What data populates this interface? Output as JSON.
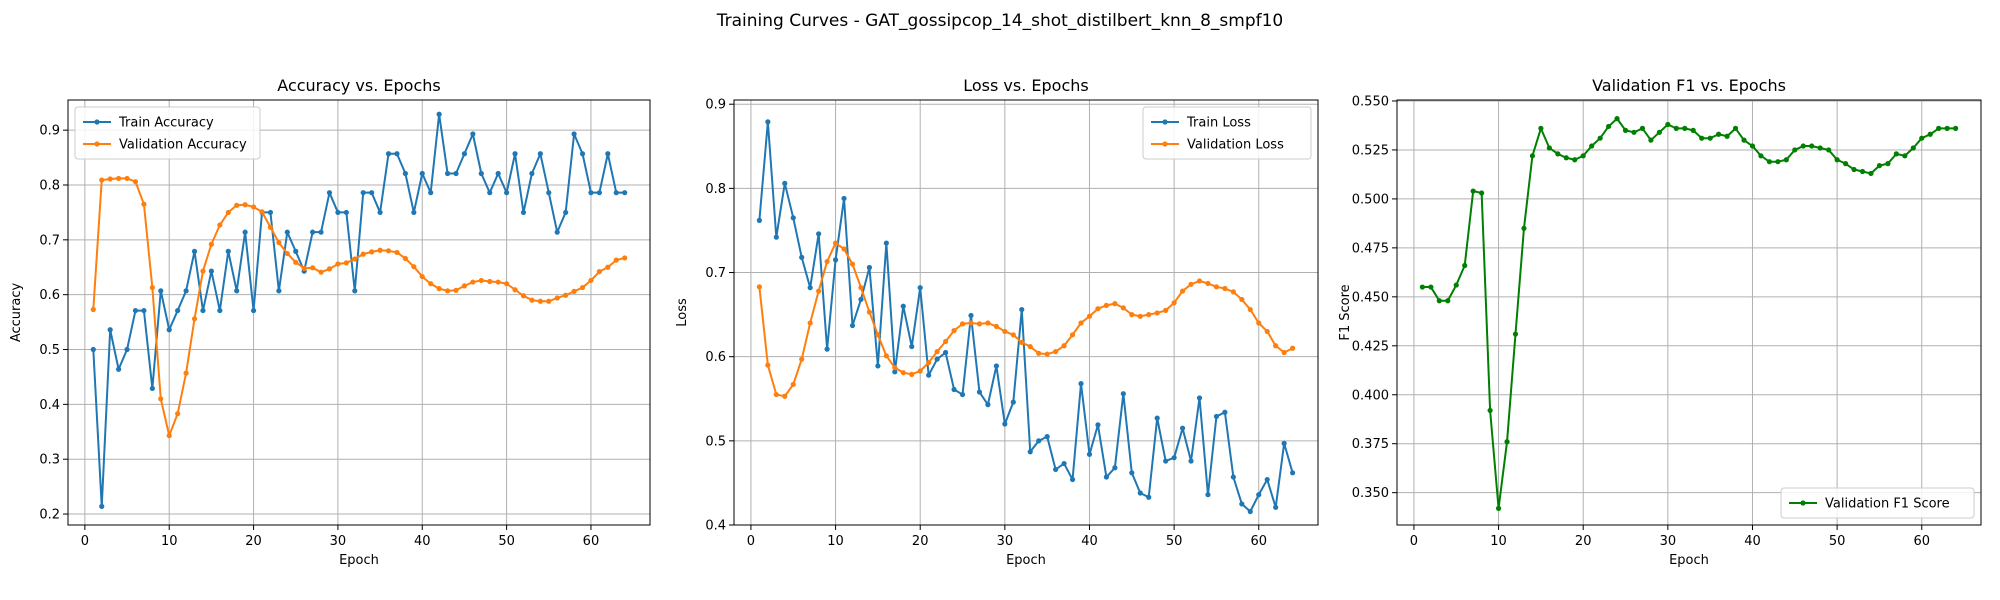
{
  "suptitle": "Training Curves - GAT_gossipcop_14_shot_distilbert_knn_8_smpf10",
  "chart_data": [
    {
      "type": "line",
      "title": "Accuracy vs. Epochs",
      "xlabel": "Epoch",
      "ylabel": "Accuracy",
      "xlim": [
        -2,
        67
      ],
      "ylim": [
        0.18,
        0.955
      ],
      "xticks": [
        0,
        10,
        20,
        30,
        40,
        50,
        60
      ],
      "yticks": [
        0.2,
        0.3,
        0.4,
        0.5,
        0.6,
        0.7,
        0.8,
        0.9
      ],
      "ytick_decimals": 1,
      "grid": true,
      "legend": "upper left",
      "x": [
        1,
        2,
        3,
        4,
        5,
        6,
        7,
        8,
        9,
        10,
        11,
        12,
        13,
        14,
        15,
        16,
        17,
        18,
        19,
        20,
        21,
        22,
        23,
        24,
        25,
        26,
        27,
        28,
        29,
        30,
        31,
        32,
        33,
        34,
        35,
        36,
        37,
        38,
        39,
        40,
        41,
        42,
        43,
        44,
        45,
        46,
        47,
        48,
        49,
        50,
        51,
        52,
        53,
        54,
        55,
        56,
        57,
        58,
        59,
        60,
        61,
        62,
        63,
        64
      ],
      "series": [
        {
          "name": "Train Accuracy",
          "color": "#1f77b4",
          "values": [
            0.5,
            0.214,
            0.536,
            0.464,
            0.5,
            0.571,
            0.571,
            0.429,
            0.607,
            0.536,
            0.571,
            0.607,
            0.679,
            0.571,
            0.643,
            0.571,
            0.679,
            0.607,
            0.714,
            0.571,
            0.75,
            0.75,
            0.607,
            0.714,
            0.679,
            0.643,
            0.714,
            0.714,
            0.786,
            0.75,
            0.75,
            0.607,
            0.786,
            0.786,
            0.75,
            0.857,
            0.857,
            0.821,
            0.75,
            0.821,
            0.786,
            0.929,
            0.821,
            0.821,
            0.857,
            0.893,
            0.821,
            0.786,
            0.821,
            0.786,
            0.857,
            0.75,
            0.821,
            0.857,
            0.786,
            0.714,
            0.75,
            0.893,
            0.857,
            0.786,
            0.786,
            0.857,
            0.786,
            0.786
          ]
        },
        {
          "name": "Validation Accuracy",
          "color": "#ff7f0e",
          "values": [
            0.573,
            0.809,
            0.811,
            0.812,
            0.812,
            0.806,
            0.765,
            0.613,
            0.41,
            0.343,
            0.383,
            0.457,
            0.556,
            0.643,
            0.692,
            0.727,
            0.75,
            0.763,
            0.764,
            0.76,
            0.751,
            0.723,
            0.695,
            0.675,
            0.659,
            0.648,
            0.649,
            0.641,
            0.647,
            0.656,
            0.658,
            0.665,
            0.674,
            0.678,
            0.681,
            0.68,
            0.677,
            0.666,
            0.651,
            0.633,
            0.62,
            0.611,
            0.607,
            0.608,
            0.616,
            0.623,
            0.626,
            0.624,
            0.623,
            0.62,
            0.609,
            0.598,
            0.59,
            0.588,
            0.588,
            0.594,
            0.599,
            0.606,
            0.613,
            0.626,
            0.642,
            0.65,
            0.663,
            0.667
          ]
        }
      ]
    },
    {
      "type": "line",
      "title": "Loss vs. Epochs",
      "xlabel": "Epoch",
      "ylabel": "Loss",
      "xlim": [
        -2,
        67
      ],
      "ylim": [
        0.4,
        0.905
      ],
      "xticks": [
        0,
        10,
        20,
        30,
        40,
        50,
        60
      ],
      "yticks": [
        0.4,
        0.5,
        0.6,
        0.7,
        0.8,
        0.9
      ],
      "ytick_decimals": 1,
      "grid": true,
      "legend": "upper right",
      "x": [
        1,
        2,
        3,
        4,
        5,
        6,
        7,
        8,
        9,
        10,
        11,
        12,
        13,
        14,
        15,
        16,
        17,
        18,
        19,
        20,
        21,
        22,
        23,
        24,
        25,
        26,
        27,
        28,
        29,
        30,
        31,
        32,
        33,
        34,
        35,
        36,
        37,
        38,
        39,
        40,
        41,
        42,
        43,
        44,
        45,
        46,
        47,
        48,
        49,
        50,
        51,
        52,
        53,
        54,
        55,
        56,
        57,
        58,
        59,
        60,
        61,
        62,
        63,
        64
      ],
      "series": [
        {
          "name": "Train Loss",
          "color": "#1f77b4",
          "values": [
            0.762,
            0.879,
            0.742,
            0.806,
            0.765,
            0.718,
            0.682,
            0.746,
            0.609,
            0.715,
            0.788,
            0.637,
            0.668,
            0.706,
            0.589,
            0.735,
            0.582,
            0.66,
            0.612,
            0.682,
            0.578,
            0.597,
            0.605,
            0.561,
            0.555,
            0.649,
            0.558,
            0.543,
            0.589,
            0.52,
            0.546,
            0.656,
            0.487,
            0.5,
            0.505,
            0.466,
            0.473,
            0.454,
            0.568,
            0.484,
            0.519,
            0.457,
            0.468,
            0.556,
            0.462,
            0.438,
            0.433,
            0.527,
            0.476,
            0.48,
            0.515,
            0.476,
            0.551,
            0.436,
            0.529,
            0.534,
            0.457,
            0.425,
            0.416,
            0.436,
            0.454,
            0.421,
            0.497,
            0.462
          ]
        },
        {
          "name": "Validation Loss",
          "color": "#ff7f0e",
          "values": [
            0.683,
            0.59,
            0.555,
            0.553,
            0.567,
            0.597,
            0.64,
            0.678,
            0.713,
            0.735,
            0.728,
            0.71,
            0.682,
            0.653,
            0.626,
            0.601,
            0.587,
            0.581,
            0.579,
            0.583,
            0.593,
            0.606,
            0.618,
            0.631,
            0.639,
            0.64,
            0.639,
            0.64,
            0.636,
            0.63,
            0.626,
            0.617,
            0.612,
            0.604,
            0.603,
            0.606,
            0.613,
            0.626,
            0.64,
            0.648,
            0.657,
            0.661,
            0.663,
            0.658,
            0.65,
            0.648,
            0.65,
            0.652,
            0.655,
            0.664,
            0.678,
            0.686,
            0.69,
            0.687,
            0.683,
            0.681,
            0.677,
            0.668,
            0.656,
            0.64,
            0.63,
            0.613,
            0.605,
            0.61
          ]
        }
      ]
    },
    {
      "type": "line",
      "title": "Validation F1 vs. Epochs",
      "xlabel": "Epoch",
      "ylabel": "F1 Score",
      "xlim": [
        -2,
        67
      ],
      "ylim": [
        0.3335,
        0.5505
      ],
      "xticks": [
        0,
        10,
        20,
        30,
        40,
        50,
        60
      ],
      "yticks": [
        0.35,
        0.375,
        0.4,
        0.425,
        0.45,
        0.475,
        0.5,
        0.525,
        0.55
      ],
      "ytick_decimals": 3,
      "grid": true,
      "legend": "lower right",
      "x": [
        1,
        2,
        3,
        4,
        5,
        6,
        7,
        8,
        9,
        10,
        11,
        12,
        13,
        14,
        15,
        16,
        17,
        18,
        19,
        20,
        21,
        22,
        23,
        24,
        25,
        26,
        27,
        28,
        29,
        30,
        31,
        32,
        33,
        34,
        35,
        36,
        37,
        38,
        39,
        40,
        41,
        42,
        43,
        44,
        45,
        46,
        47,
        48,
        49,
        50,
        51,
        52,
        53,
        54,
        55,
        56,
        57,
        58,
        59,
        60,
        61,
        62,
        63,
        64
      ],
      "series": [
        {
          "name": "Validation F1 Score",
          "color": "#008000",
          "values": [
            0.455,
            0.455,
            0.448,
            0.448,
            0.456,
            0.466,
            0.504,
            0.503,
            0.392,
            0.342,
            0.376,
            0.431,
            0.485,
            0.522,
            0.536,
            0.526,
            0.523,
            0.521,
            0.52,
            0.522,
            0.527,
            0.531,
            0.537,
            0.541,
            0.535,
            0.534,
            0.536,
            0.53,
            0.534,
            0.538,
            0.536,
            0.536,
            0.535,
            0.531,
            0.531,
            0.533,
            0.532,
            0.536,
            0.53,
            0.527,
            0.522,
            0.519,
            0.519,
            0.52,
            0.525,
            0.527,
            0.527,
            0.526,
            0.525,
            0.52,
            0.518,
            0.515,
            0.514,
            0.513,
            0.517,
            0.518,
            0.523,
            0.522,
            0.526,
            0.531,
            0.533,
            0.536,
            0.536,
            0.536
          ]
        }
      ]
    }
  ]
}
